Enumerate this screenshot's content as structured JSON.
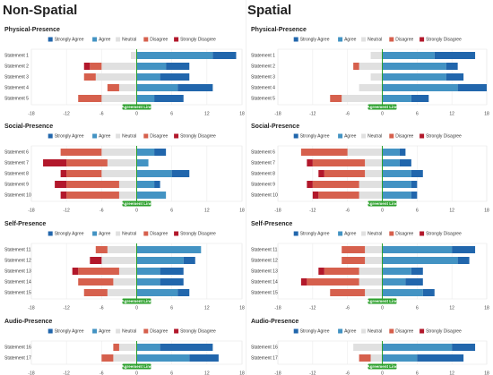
{
  "headings": [
    "Non-Spatial",
    "Spatial"
  ],
  "chart_data": [
    {
      "type": "bar",
      "title": "Physical-Presence",
      "annotation": "Agreement Line",
      "categories": [
        "Statement 1",
        "Statement 2",
        "Statement 3",
        "Statement 4",
        "Statement 5"
      ],
      "series": [
        {
          "name": "Strongly Agree",
          "color": "#2166ac",
          "values": [
            4,
            4,
            5,
            6,
            5
          ]
        },
        {
          "name": "Agree",
          "color": "#4393c3",
          "values": [
            13,
            5,
            4,
            7,
            3
          ]
        },
        {
          "name": "Neutral",
          "color": "#e0e0e0",
          "values": [
            1,
            6,
            7,
            3,
            6
          ]
        },
        {
          "name": "Disagree",
          "color": "#d6604d",
          "values": [
            0,
            2,
            2,
            2,
            4
          ]
        },
        {
          "name": "Strongly Disagree",
          "color": "#b2182b",
          "values": [
            0,
            1,
            0,
            0,
            0
          ]
        }
      ],
      "xlim": [
        -18,
        18
      ],
      "xticks": [
        -18,
        -12,
        -6,
        0,
        6,
        12,
        18
      ],
      "grid": true
    },
    {
      "type": "bar",
      "title": "Social-Presence",
      "annotation": "Agreement Line",
      "categories": [
        "Statement 6",
        "Statement 7",
        "Statement 8",
        "Statement 9",
        "Statement 10"
      ],
      "series": [
        {
          "name": "Strongly Agree",
          "color": "#2166ac",
          "values": [
            2,
            0,
            3,
            1,
            0
          ]
        },
        {
          "name": "Agree",
          "color": "#4393c3",
          "values": [
            3,
            2,
            6,
            3,
            5
          ]
        },
        {
          "name": "Neutral",
          "color": "#e0e0e0",
          "values": [
            6,
            5,
            6,
            3,
            3
          ]
        },
        {
          "name": "Disagree",
          "color": "#d6604d",
          "values": [
            7,
            7,
            6,
            9,
            9
          ]
        },
        {
          "name": "Strongly Disagree",
          "color": "#b2182b",
          "values": [
            0,
            4,
            1,
            2,
            1
          ]
        }
      ],
      "xlim": [
        -18,
        18
      ],
      "xticks": [
        -18,
        -12,
        -6,
        0,
        6,
        12,
        18
      ],
      "grid": true
    },
    {
      "type": "bar",
      "title": "Self-Presence",
      "annotation": "Agreement Line",
      "categories": [
        "Statement 11",
        "Statement 12",
        "Statement 13",
        "Statement 14",
        "Statement 15"
      ],
      "series": [
        {
          "name": "Strongly Agree",
          "color": "#2166ac",
          "values": [
            0,
            2,
            4,
            4,
            2
          ]
        },
        {
          "name": "Agree",
          "color": "#4393c3",
          "values": [
            11,
            8,
            4,
            4,
            7
          ]
        },
        {
          "name": "Neutral",
          "color": "#e0e0e0",
          "values": [
            5,
            6,
            3,
            4,
            5
          ]
        },
        {
          "name": "Disagree",
          "color": "#d6604d",
          "values": [
            2,
            0,
            7,
            6,
            4
          ]
        },
        {
          "name": "Strongly Disagree",
          "color": "#b2182b",
          "values": [
            0,
            2,
            1,
            0,
            0
          ]
        }
      ],
      "xlim": [
        -18,
        18
      ],
      "xticks": [
        -18,
        -12,
        -6,
        0,
        6,
        12,
        18
      ],
      "grid": true
    },
    {
      "type": "bar",
      "title": "Audio-Presence",
      "annotation": "Agreement Line",
      "categories": [
        "Statement 16",
        "Statement 17"
      ],
      "series": [
        {
          "name": "Strongly Agree",
          "color": "#2166ac",
          "values": [
            9,
            5
          ]
        },
        {
          "name": "Agree",
          "color": "#4393c3",
          "values": [
            4,
            9
          ]
        },
        {
          "name": "Neutral",
          "color": "#e0e0e0",
          "values": [
            3,
            4
          ]
        },
        {
          "name": "Disagree",
          "color": "#d6604d",
          "values": [
            1,
            2
          ]
        },
        {
          "name": "Strongly Disagree",
          "color": "#b2182b",
          "values": [
            0,
            0
          ]
        }
      ],
      "xlim": [
        -18,
        18
      ],
      "xticks": [
        -18,
        -12,
        -6,
        0,
        6,
        12,
        18
      ],
      "grid": true
    },
    {
      "type": "bar",
      "title": "Physical-Presence",
      "annotation": "Agreement Line",
      "categories": [
        "Statement 1",
        "Statement 2",
        "Statement 3",
        "Statement 4",
        "Statement 5"
      ],
      "series": [
        {
          "name": "Strongly Agree",
          "color": "#2166ac",
          "values": [
            7,
            2,
            3,
            5,
            3
          ]
        },
        {
          "name": "Agree",
          "color": "#4393c3",
          "values": [
            9,
            11,
            11,
            13,
            5
          ]
        },
        {
          "name": "Neutral",
          "color": "#e0e0e0",
          "values": [
            2,
            4,
            2,
            4,
            7
          ]
        },
        {
          "name": "Disagree",
          "color": "#d6604d",
          "values": [
            0,
            1,
            0,
            0,
            2
          ]
        },
        {
          "name": "Strongly Disagree",
          "color": "#b2182b",
          "values": [
            0,
            0,
            0,
            0,
            0
          ]
        }
      ],
      "xlim": [
        -18,
        18
      ],
      "xticks": [
        -18,
        -12,
        -6,
        0,
        6,
        12,
        18
      ],
      "grid": true
    },
    {
      "type": "bar",
      "title": "Social-Presence",
      "annotation": "Agreement Line",
      "categories": [
        "Statement 6",
        "Statement 7",
        "Statement 8",
        "Statement 9",
        "Statement 10"
      ],
      "series": [
        {
          "name": "Strongly Agree",
          "color": "#2166ac",
          "values": [
            1,
            2,
            2,
            1,
            1
          ]
        },
        {
          "name": "Agree",
          "color": "#4393c3",
          "values": [
            3,
            3,
            5,
            5,
            5
          ]
        },
        {
          "name": "Neutral",
          "color": "#e0e0e0",
          "values": [
            6,
            3,
            3,
            4,
            4
          ]
        },
        {
          "name": "Disagree",
          "color": "#d6604d",
          "values": [
            8,
            9,
            7,
            8,
            7
          ]
        },
        {
          "name": "Strongly Disagree",
          "color": "#b2182b",
          "values": [
            0,
            1,
            1,
            1,
            1
          ]
        }
      ],
      "xlim": [
        -18,
        18
      ],
      "xticks": [
        -18,
        -12,
        -6,
        0,
        6,
        12,
        18
      ],
      "grid": true
    },
    {
      "type": "bar",
      "title": "Self-Presence",
      "annotation": "Agreement Line",
      "categories": [
        "Statement 11",
        "Statement 12",
        "Statement 13",
        "Statement 14",
        "Statement 15"
      ],
      "series": [
        {
          "name": "Strongly Agree",
          "color": "#2166ac",
          "values": [
            4,
            2,
            2,
            3,
            2
          ]
        },
        {
          "name": "Agree",
          "color": "#4393c3",
          "values": [
            12,
            13,
            5,
            4,
            7
          ]
        },
        {
          "name": "Neutral",
          "color": "#e0e0e0",
          "values": [
            3,
            3,
            4,
            4,
            3
          ]
        },
        {
          "name": "Disagree",
          "color": "#d6604d",
          "values": [
            4,
            4,
            6,
            9,
            6
          ]
        },
        {
          "name": "Strongly Disagree",
          "color": "#b2182b",
          "values": [
            0,
            0,
            1,
            1,
            0
          ]
        }
      ],
      "xlim": [
        -18,
        18
      ],
      "xticks": [
        -18,
        -12,
        -6,
        0,
        6,
        12,
        18
      ],
      "grid": true
    },
    {
      "type": "bar",
      "title": "Audio-Presence",
      "annotation": "Agreement Line",
      "categories": [
        "Statement 16",
        "Statement 17"
      ],
      "series": [
        {
          "name": "Strongly Agree",
          "color": "#2166ac",
          "values": [
            4,
            8
          ]
        },
        {
          "name": "Agree",
          "color": "#4393c3",
          "values": [
            12,
            6
          ]
        },
        {
          "name": "Neutral",
          "color": "#e0e0e0",
          "values": [
            5,
            2
          ]
        },
        {
          "name": "Disagree",
          "color": "#d6604d",
          "values": [
            0,
            2
          ]
        },
        {
          "name": "Strongly Disagree",
          "color": "#b2182b",
          "values": [
            0,
            0
          ]
        }
      ],
      "xlim": [
        -18,
        18
      ],
      "xticks": [
        -18,
        -12,
        -6,
        0,
        6,
        12,
        18
      ],
      "grid": true
    }
  ]
}
